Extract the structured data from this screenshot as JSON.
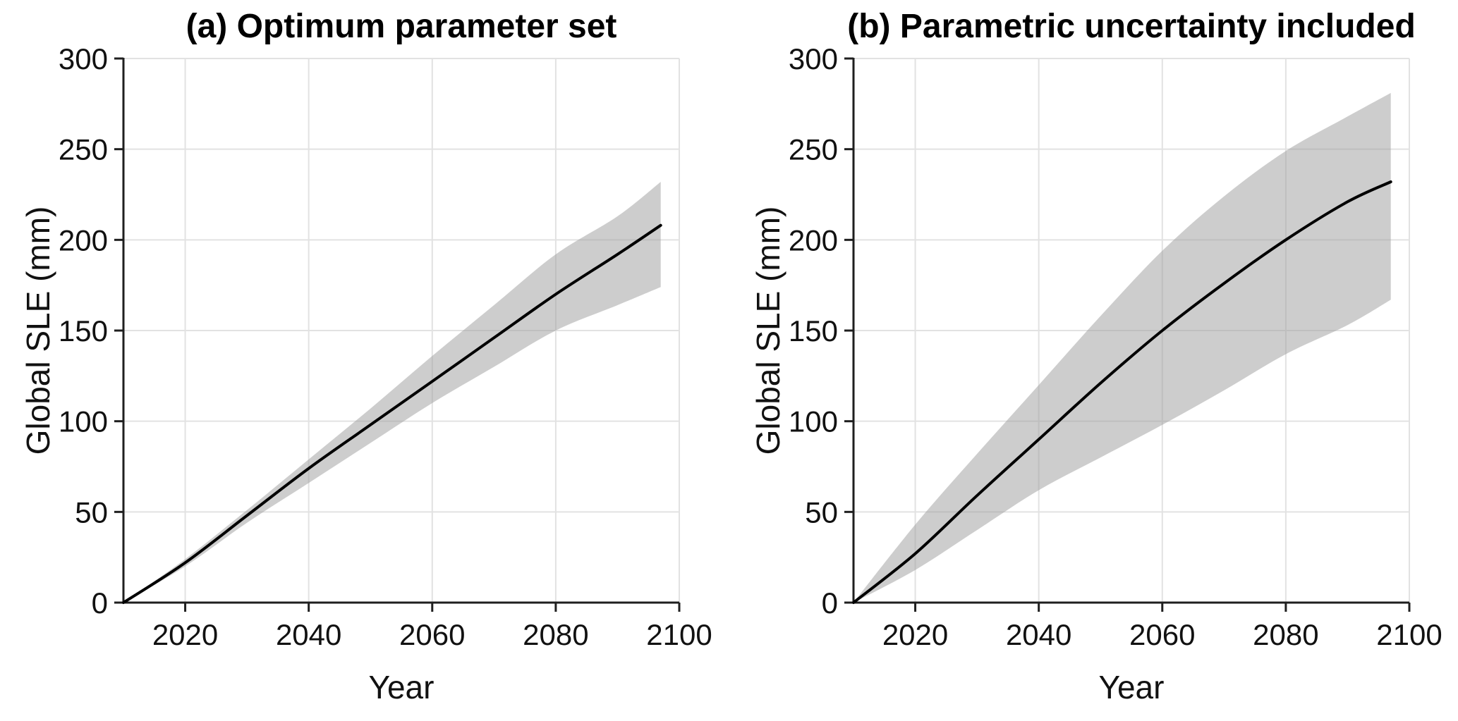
{
  "colors": {
    "background": "#ffffff",
    "mean_line": "#000000",
    "band_fill_rgba": "rgba(155,155,155,0.5)",
    "band_apparent": "#cdcdcd",
    "grid": "#e2e2e2",
    "axis": "#1f1f1f",
    "text": "#111111"
  },
  "chart_data": [
    {
      "type": "line",
      "panel": "a",
      "title": "(a) Optimum parameter set",
      "xlabel": "Year",
      "ylabel": "Global SLE (mm)",
      "xlim": [
        2010,
        2100
      ],
      "ylim": [
        0,
        300
      ],
      "xticks": [
        2020,
        2040,
        2060,
        2080,
        2100
      ],
      "yticks": [
        0,
        50,
        100,
        150,
        200,
        250,
        300
      ],
      "grid": true,
      "legend": "none",
      "x": [
        2010,
        2020,
        2030,
        2040,
        2050,
        2060,
        2070,
        2080,
        2090,
        2097
      ],
      "series": [
        {
          "name": "mean projection",
          "style": "line",
          "values": [
            0,
            22,
            48,
            74,
            98,
            122,
            146,
            170,
            192,
            208
          ]
        },
        {
          "name": "uncertainty band lower",
          "style": "band-lower",
          "values": [
            0,
            20,
            44,
            66,
            88,
            110,
            130,
            150,
            164,
            174
          ]
        },
        {
          "name": "uncertainty band upper",
          "style": "band-upper",
          "values": [
            0,
            24,
            51,
            79,
            107,
            136,
            164,
            192,
            213,
            232
          ]
        }
      ]
    },
    {
      "type": "line",
      "panel": "b",
      "title": "(b) Parametric uncertainty included",
      "xlabel": "Year",
      "ylabel": "Global SLE (mm)",
      "xlim": [
        2010,
        2100
      ],
      "ylim": [
        0,
        300
      ],
      "xticks": [
        2020,
        2040,
        2060,
        2080,
        2100
      ],
      "yticks": [
        0,
        50,
        100,
        150,
        200,
        250,
        300
      ],
      "grid": true,
      "legend": "none",
      "x": [
        2010,
        2020,
        2030,
        2040,
        2050,
        2060,
        2070,
        2080,
        2090,
        2097
      ],
      "series": [
        {
          "name": "mean projection",
          "style": "line",
          "values": [
            0,
            27,
            59,
            90,
            121,
            150,
            176,
            200,
            221,
            232
          ]
        },
        {
          "name": "uncertainty band lower",
          "style": "band-lower",
          "values": [
            0,
            18,
            40,
            62,
            80,
            98,
            117,
            137,
            153,
            167
          ]
        },
        {
          "name": "uncertainty band upper",
          "style": "band-upper",
          "values": [
            0,
            43,
            82,
            120,
            158,
            194,
            224,
            249,
            268,
            281
          ]
        }
      ]
    }
  ]
}
